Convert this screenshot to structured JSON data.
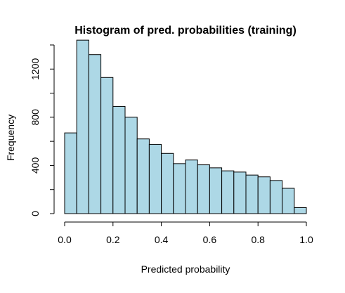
{
  "chart_data": {
    "type": "bar",
    "title": "Histogram of pred. probabilities (training)",
    "xlabel": "Predicted probability",
    "ylabel": "Frequency",
    "bin_edges": [
      0.0,
      0.05,
      0.1,
      0.15,
      0.2,
      0.25,
      0.3,
      0.35,
      0.4,
      0.45,
      0.5,
      0.55,
      0.6,
      0.65,
      0.7,
      0.75,
      0.8,
      0.85,
      0.9,
      0.95,
      1.0
    ],
    "values": [
      670,
      1440,
      1320,
      1130,
      890,
      800,
      620,
      575,
      500,
      415,
      445,
      405,
      380,
      355,
      345,
      320,
      305,
      275,
      210,
      50
    ],
    "xlim": [
      0.0,
      1.0
    ],
    "ylim": [
      0,
      1400
    ],
    "x_ticks": [
      0.0,
      0.2,
      0.4,
      0.6,
      0.8,
      1.0
    ],
    "x_tick_labels": [
      "0.0",
      "0.2",
      "0.4",
      "0.6",
      "0.8",
      "1.0"
    ],
    "y_ticks": [
      0,
      200,
      400,
      600,
      800,
      1000,
      1200,
      1400
    ],
    "y_tick_labels": [
      "0",
      "",
      "400",
      "",
      "800",
      "",
      "1200",
      ""
    ],
    "bar_color": "#add8e6",
    "edge_color": "#000000",
    "grid": false,
    "legend": "none"
  }
}
